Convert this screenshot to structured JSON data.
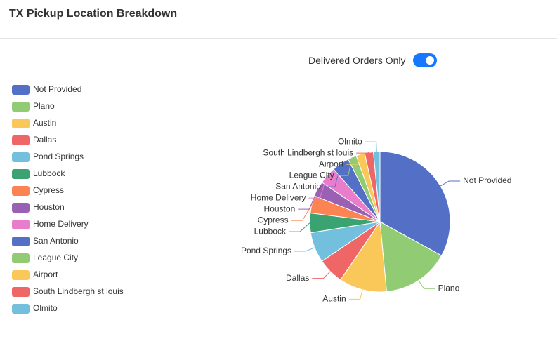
{
  "header": {
    "title": "TX Pickup Location Breakdown"
  },
  "toggle": {
    "label": "Delivered Orders Only",
    "checked": true
  },
  "chart_data": {
    "type": "pie",
    "categories": [
      "Not Provided",
      "Plano",
      "Austin",
      "Dallas",
      "Pond Springs",
      "Lubbock",
      "Cypress",
      "Houston",
      "Home Delivery",
      "San Antonio",
      "League City",
      "Airport",
      "South Lindbergh st louis",
      "Olmito"
    ],
    "values": [
      33,
      15.5,
      11,
      6,
      7,
      4.5,
      4,
      3.5,
      4,
      4,
      2,
      2,
      2,
      1.5
    ],
    "colors": [
      "#5470c6",
      "#91cc75",
      "#fac858",
      "#ee6666",
      "#73c0de",
      "#3ba272",
      "#fc8452",
      "#9a60b4",
      "#ea7ccc",
      "#5470c6",
      "#91cc75",
      "#fac858",
      "#ee6666",
      "#73c0de"
    ]
  }
}
